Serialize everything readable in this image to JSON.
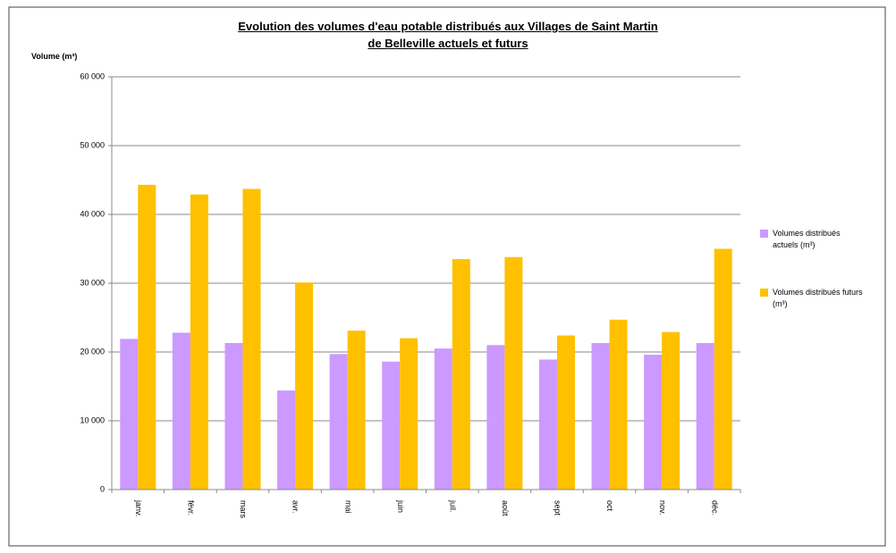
{
  "chart_data": {
    "type": "bar",
    "title": "Evolution des volumes d'eau potable distribués aux Villages de Saint Martin de Belleville actuels et futurs",
    "y_label": "Volume (m³)",
    "categories": [
      "janv.",
      "févr.",
      "mars",
      "avr.",
      "mai",
      "juin",
      "juil.",
      "août",
      "sept",
      "oct",
      "nov.",
      "déc."
    ],
    "series": [
      {
        "name": "Volumes distribués actuels (m³)",
        "color": "#cc99ff",
        "values": [
          21900,
          22800,
          21300,
          14400,
          19700,
          18600,
          20500,
          21000,
          18900,
          21300,
          19600,
          21300
        ]
      },
      {
        "name": "Volumes distribués futurs (m³)",
        "color": "#ffc000",
        "values": [
          44300,
          42900,
          43700,
          30100,
          23100,
          22000,
          33500,
          33800,
          22400,
          24700,
          22900,
          35000
        ]
      }
    ],
    "ylim": [
      0,
      60000
    ],
    "yticks": [
      0,
      {
        "value": 10000,
        "label": "10 000"
      },
      {
        "value": 20000,
        "label": "20 000"
      },
      {
        "value": 30000,
        "label": "30 000"
      },
      {
        "value": 40000,
        "label": "40 000"
      },
      {
        "value": 50000,
        "label": "50 000"
      },
      {
        "value": 60000,
        "label": "60 000"
      }
    ],
    "grid": true,
    "legend": "right"
  }
}
